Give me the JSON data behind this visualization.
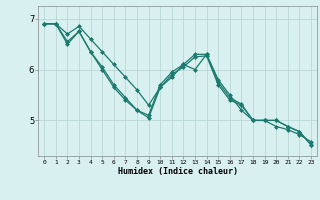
{
  "xlabel": "Humidex (Indice chaleur)",
  "bg_color": "#d8f0f0",
  "grid_color": "#b8d8d8",
  "line_color": "#1a7a6e",
  "markersize": 2.5,
  "linewidth": 0.9,
  "xlim": [
    -0.5,
    23.5
  ],
  "ylim": [
    4.3,
    7.25
  ],
  "yticks": [
    5,
    6,
    7
  ],
  "xticks": [
    0,
    1,
    2,
    3,
    4,
    5,
    6,
    7,
    8,
    9,
    10,
    11,
    12,
    13,
    14,
    15,
    16,
    17,
    18,
    19,
    20,
    21,
    22,
    23
  ],
  "line1": [
    6.9,
    6.9,
    6.7,
    6.85,
    6.6,
    6.35,
    6.1,
    5.85,
    5.6,
    5.3,
    5.65,
    5.85,
    6.1,
    6.0,
    6.3,
    5.8,
    5.5,
    5.2,
    5.0,
    5.0,
    4.88,
    4.82,
    4.72,
    4.58
  ],
  "line2": [
    6.9,
    6.9,
    6.55,
    6.75,
    6.35,
    6.05,
    5.7,
    5.45,
    5.2,
    5.1,
    5.7,
    5.95,
    6.1,
    6.3,
    6.3,
    5.75,
    5.45,
    5.32,
    5.0,
    5.0,
    5.0,
    4.88,
    4.78,
    4.52
  ],
  "line3": [
    6.9,
    6.9,
    6.5,
    6.75,
    6.35,
    6.0,
    5.65,
    5.4,
    5.2,
    5.05,
    5.65,
    5.9,
    6.05,
    6.25,
    6.27,
    5.7,
    5.4,
    5.3,
    5.0,
    5.0,
    5.0,
    4.88,
    4.78,
    4.52
  ]
}
